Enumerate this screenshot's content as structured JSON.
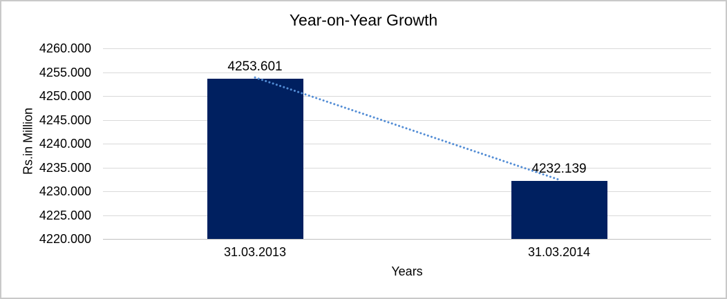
{
  "chart_data": {
    "type": "bar",
    "title": "Year-on-Year Growth",
    "categories": [
      "31.03.2013",
      "31.03.2014"
    ],
    "values": [
      4253.601,
      4232.139
    ],
    "data_labels": [
      "4253.601",
      "4232.139"
    ],
    "xlabel": "Years",
    "ylabel": "Rs.in Million",
    "ylim": [
      4220,
      4260
    ],
    "ytick_step": 5,
    "ytick_labels": [
      "4260.000",
      "4255.000",
      "4250.000",
      "4245.000",
      "4240.000",
      "4235.000",
      "4230.000",
      "4225.000",
      "4220.000"
    ],
    "grid": true,
    "legend": "none",
    "trendline": {
      "type": "linear",
      "style": "dotted",
      "from_value": 4253.601,
      "to_value": 4232.139
    },
    "colors": {
      "bar": "#002060",
      "trendline": "#538dd5",
      "gridline": "#d9d9d9",
      "axis_line": "#bfbfbf",
      "text": "#000000",
      "border": "#c9c9c9"
    }
  }
}
